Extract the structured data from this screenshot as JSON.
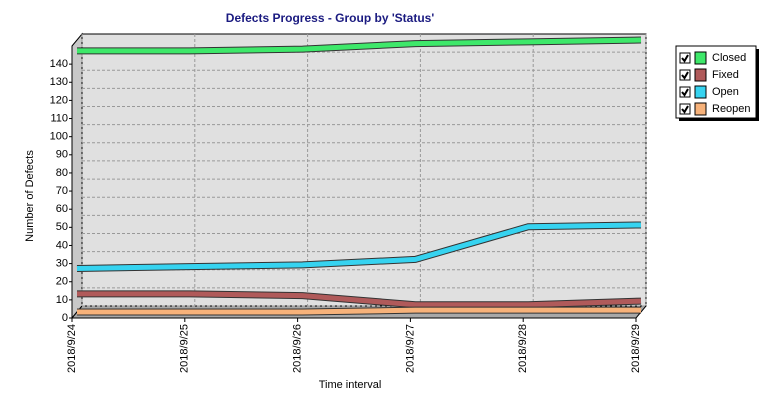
{
  "chart_data": {
    "type": "line",
    "title": "Defects Progress - Group by 'Status'",
    "x_label": "Time interval",
    "y_label": "Number of Defects",
    "categories": [
      "2018/9/24",
      "2018/9/25",
      "2018/9/26",
      "2018/9/27",
      "2018/9/28",
      "2018/9/29"
    ],
    "series": [
      {
        "name": "Closed",
        "color": "#3ee86a",
        "values": [
          144,
          144,
          145,
          148,
          149,
          150
        ]
      },
      {
        "name": "Fixed",
        "color": "#b05a5a",
        "values": [
          10,
          10,
          9,
          4,
          4,
          6
        ]
      },
      {
        "name": "Open",
        "color": "#36d3f0",
        "values": [
          24,
          25,
          26,
          29,
          47,
          48
        ]
      },
      {
        "name": "Reopen",
        "color": "#f7b27a",
        "values": [
          0,
          0,
          0,
          1,
          1,
          1
        ]
      }
    ],
    "ylim": [
      0,
      150
    ],
    "yticks": [
      0,
      10,
      20,
      30,
      40,
      50,
      60,
      70,
      80,
      90,
      100,
      110,
      120,
      130,
      140
    ],
    "grid": true,
    "legend": "right"
  }
}
